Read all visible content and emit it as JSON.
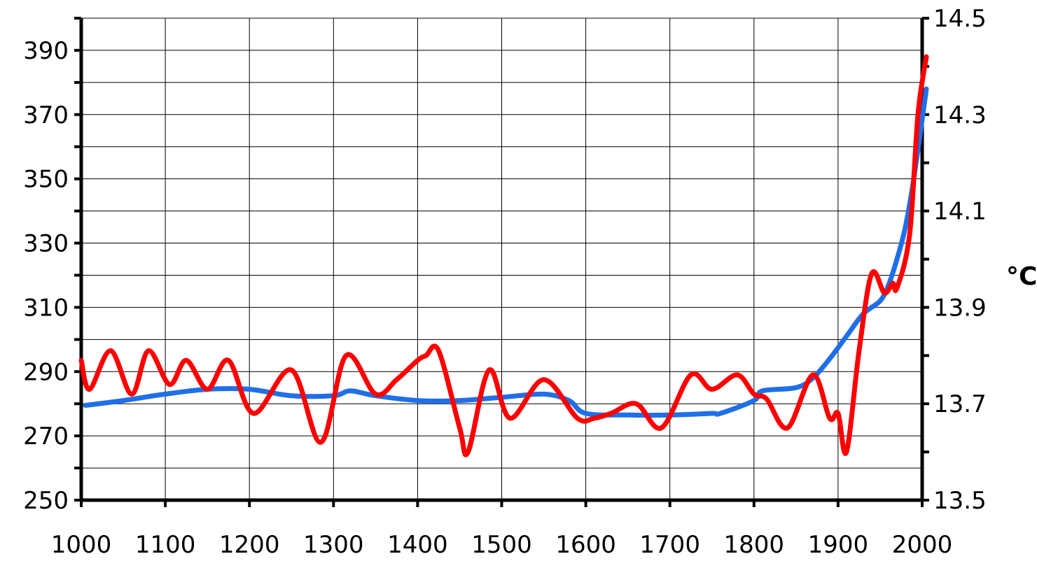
{
  "chart_data": {
    "type": "line",
    "title": "",
    "xlabel": "",
    "ylabel": "",
    "y2label": "°C",
    "xlim": [
      1000,
      2000
    ],
    "ylim": [
      250,
      400
    ],
    "y2lim": [
      13.5,
      14.5
    ],
    "x_ticks": [
      "1000",
      "1100",
      "1200",
      "1300",
      "1400",
      "1500",
      "1600",
      "1700",
      "1800",
      "1900",
      "2000"
    ],
    "y_ticks": [
      "250",
      "270",
      "290",
      "310",
      "330",
      "350",
      "370",
      "390"
    ],
    "y2_ticks": [
      "13.5",
      "13.7",
      "13.9",
      "14.1",
      "14.3",
      "14.5"
    ],
    "grid": true,
    "legend": "none",
    "series": [
      {
        "axis": "left",
        "color": "#1f6fe8",
        "x": [
          1005,
          1050,
          1100,
          1150,
          1200,
          1250,
          1300,
          1320,
          1350,
          1400,
          1450,
          1500,
          1550,
          1580,
          1600,
          1650,
          1700,
          1750,
          1760,
          1800,
          1810,
          1850,
          1870,
          1890,
          1910,
          1930,
          1950,
          1960,
          1970,
          1980,
          1990,
          2005
        ],
        "y": [
          279.5,
          281,
          283,
          284.5,
          284.5,
          282.5,
          282.5,
          284,
          282.5,
          281,
          281,
          282,
          283,
          281,
          277,
          276.5,
          276.5,
          277,
          277,
          281,
          284,
          285,
          288,
          294,
          301,
          308,
          312,
          317,
          325,
          335,
          350,
          378
        ]
      },
      {
        "axis": "right",
        "color": "#ff0000",
        "x": [
          1000,
          1010,
          1035,
          1060,
          1080,
          1105,
          1125,
          1150,
          1175,
          1205,
          1250,
          1285,
          1315,
          1350,
          1375,
          1400,
          1410,
          1425,
          1450,
          1460,
          1485,
          1510,
          1550,
          1590,
          1610,
          1630,
          1660,
          1690,
          1725,
          1750,
          1780,
          1800,
          1815,
          1840,
          1870,
          1890,
          1900,
          1910,
          1925,
          1940,
          1955,
          1965,
          1970,
          1985,
          1995,
          2005
        ],
        "y": [
          13.79,
          13.73,
          13.81,
          13.72,
          13.81,
          13.74,
          13.79,
          13.73,
          13.79,
          13.68,
          13.77,
          13.62,
          13.8,
          13.72,
          13.75,
          13.79,
          13.8,
          13.81,
          13.65,
          13.6,
          13.77,
          13.67,
          13.75,
          13.67,
          13.67,
          13.68,
          13.7,
          13.65,
          13.76,
          13.73,
          13.76,
          13.72,
          13.71,
          13.65,
          13.76,
          13.67,
          13.68,
          13.6,
          13.81,
          13.97,
          13.93,
          13.95,
          13.94,
          14.05,
          14.3,
          14.42
        ]
      }
    ]
  }
}
